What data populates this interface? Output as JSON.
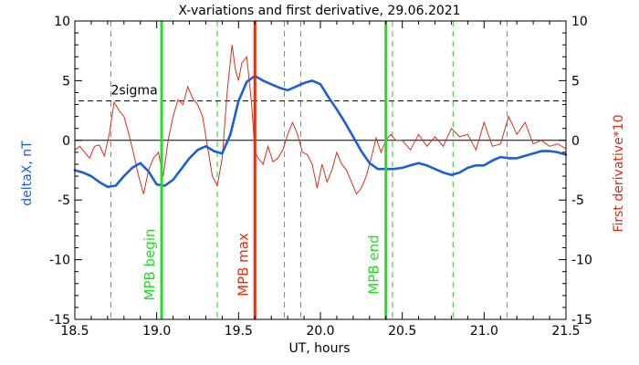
{
  "chart_data": {
    "type": "line",
    "title": "X-variations and first derivative, 29.06.2021",
    "xlabel": "UT, hours",
    "ylabel_left": "deltaX, nT",
    "ylabel_right": "First derivative*10",
    "xlim": [
      18.5,
      21.5
    ],
    "ylim": [
      -15,
      10
    ],
    "y2lim": [
      -15,
      10
    ],
    "x_ticks": [
      "18.5",
      "19.0",
      "19.5",
      "20.0",
      "20.5",
      "21.0",
      "21.5"
    ],
    "y_ticks": [
      "-15",
      "-10",
      "-5",
      "0",
      "5",
      "10"
    ],
    "y2_ticks": [
      "-15",
      "-10",
      "-5",
      "0",
      "5",
      "10"
    ],
    "colors": {
      "deltaX": "#1a5fd6",
      "derivative": "#d9301a",
      "mpb_boundary": "#22dd22",
      "mpb_max": "#e03010",
      "dashed_markers": "#22cc22"
    },
    "threshold": {
      "label": "2sigma",
      "value": 3.3
    },
    "zero_line": 0,
    "vertical_dashed_markers": [
      18.72,
      19.37,
      19.78,
      19.88,
      20.44,
      20.81,
      21.14
    ],
    "vertical_markers": [
      {
        "x": 19.03,
        "label": "MPB begin",
        "kind": "mpb_boundary"
      },
      {
        "x": 19.6,
        "label": "MPB max",
        "kind": "mpb_max"
      },
      {
        "x": 20.4,
        "label": "MPB end",
        "kind": "mpb_boundary"
      }
    ],
    "series": [
      {
        "key": "deltaX",
        "axis": "left",
        "x": [
          18.5,
          18.55,
          18.6,
          18.65,
          18.7,
          18.75,
          18.8,
          18.85,
          18.9,
          18.95,
          19.0,
          19.05,
          19.1,
          19.15,
          19.2,
          19.25,
          19.3,
          19.35,
          19.4,
          19.45,
          19.5,
          19.55,
          19.6,
          19.65,
          19.7,
          19.75,
          19.8,
          19.85,
          19.9,
          19.95,
          20.0,
          20.05,
          20.1,
          20.15,
          20.2,
          20.25,
          20.3,
          20.35,
          20.4,
          20.45,
          20.5,
          20.55,
          20.6,
          20.65,
          20.7,
          20.75,
          20.8,
          20.85,
          20.9,
          20.95,
          21.0,
          21.05,
          21.1,
          21.15,
          21.2,
          21.25,
          21.3,
          21.35,
          21.4,
          21.45,
          21.5
        ],
        "values": [
          -2.5,
          -2.7,
          -3.0,
          -3.5,
          -3.9,
          -3.8,
          -3.0,
          -2.3,
          -1.9,
          -2.6,
          -3.7,
          -3.8,
          -3.3,
          -2.4,
          -1.5,
          -0.8,
          -0.5,
          -0.9,
          -1.1,
          0.5,
          3.3,
          4.9,
          5.4,
          5.0,
          4.7,
          4.4,
          4.2,
          4.5,
          4.8,
          5.0,
          4.7,
          3.6,
          2.6,
          1.5,
          0.3,
          -0.9,
          -1.9,
          -2.4,
          -2.4,
          -2.4,
          -2.3,
          -2.1,
          -1.9,
          -2.1,
          -2.4,
          -2.7,
          -2.9,
          -2.7,
          -2.3,
          -2.1,
          -2.1,
          -1.7,
          -1.4,
          -1.5,
          -1.5,
          -1.3,
          -1.1,
          -0.9,
          -0.9,
          -1.0,
          -1.2
        ]
      },
      {
        "key": "derivative",
        "axis": "right",
        "x": [
          18.5,
          18.53,
          18.56,
          18.59,
          18.62,
          18.65,
          18.68,
          18.71,
          18.74,
          18.77,
          18.8,
          18.83,
          18.86,
          18.89,
          18.92,
          18.95,
          18.98,
          19.01,
          19.04,
          19.07,
          19.1,
          19.13,
          19.16,
          19.19,
          19.22,
          19.25,
          19.28,
          19.31,
          19.34,
          19.37,
          19.4,
          19.43,
          19.46,
          19.48,
          19.5,
          19.52,
          19.55,
          19.58,
          19.6,
          19.62,
          19.65,
          19.68,
          19.71,
          19.74,
          19.77,
          19.8,
          19.83,
          19.86,
          19.89,
          19.92,
          19.95,
          19.98,
          20.01,
          20.04,
          20.07,
          20.1,
          20.13,
          20.16,
          20.19,
          20.22,
          20.25,
          20.28,
          20.31,
          20.34,
          20.37,
          20.4,
          20.43,
          20.46,
          20.5,
          20.55,
          20.6,
          20.65,
          20.7,
          20.75,
          20.8,
          20.85,
          20.9,
          20.95,
          21.0,
          21.05,
          21.1,
          21.15,
          21.2,
          21.25,
          21.3,
          21.35,
          21.4,
          21.45,
          21.5
        ],
        "values": [
          -0.8,
          -0.5,
          -1.0,
          -1.5,
          -0.5,
          -0.4,
          -1.3,
          0.5,
          3.2,
          2.5,
          2.0,
          0.5,
          -1.2,
          -3.0,
          -4.5,
          -2.5,
          -1.5,
          -1.0,
          -3.0,
          0.0,
          2.0,
          3.4,
          3.0,
          4.5,
          3.5,
          3.0,
          2.0,
          -0.5,
          -3.0,
          -3.8,
          -1.5,
          4.0,
          8.0,
          6.0,
          5.0,
          6.5,
          7.0,
          3.0,
          -1.0,
          -1.5,
          -2.0,
          -0.5,
          -1.8,
          -1.5,
          -0.8,
          0.5,
          1.5,
          0.5,
          -1.0,
          -1.2,
          -2.0,
          -4.0,
          -2.0,
          -3.5,
          -2.5,
          -1.0,
          -2.0,
          -2.5,
          -3.5,
          -4.5,
          -4.0,
          -3.0,
          -1.5,
          0.2,
          -1.0,
          0.0,
          0.5,
          0.0,
          0.0,
          -0.8,
          0.5,
          -0.5,
          0.3,
          -0.5,
          1.0,
          0.3,
          0.5,
          -0.8,
          1.5,
          -0.5,
          -0.3,
          2.0,
          0.5,
          1.5,
          -0.3,
          0.0,
          -0.5,
          -0.3,
          -0.7
        ]
      }
    ]
  }
}
